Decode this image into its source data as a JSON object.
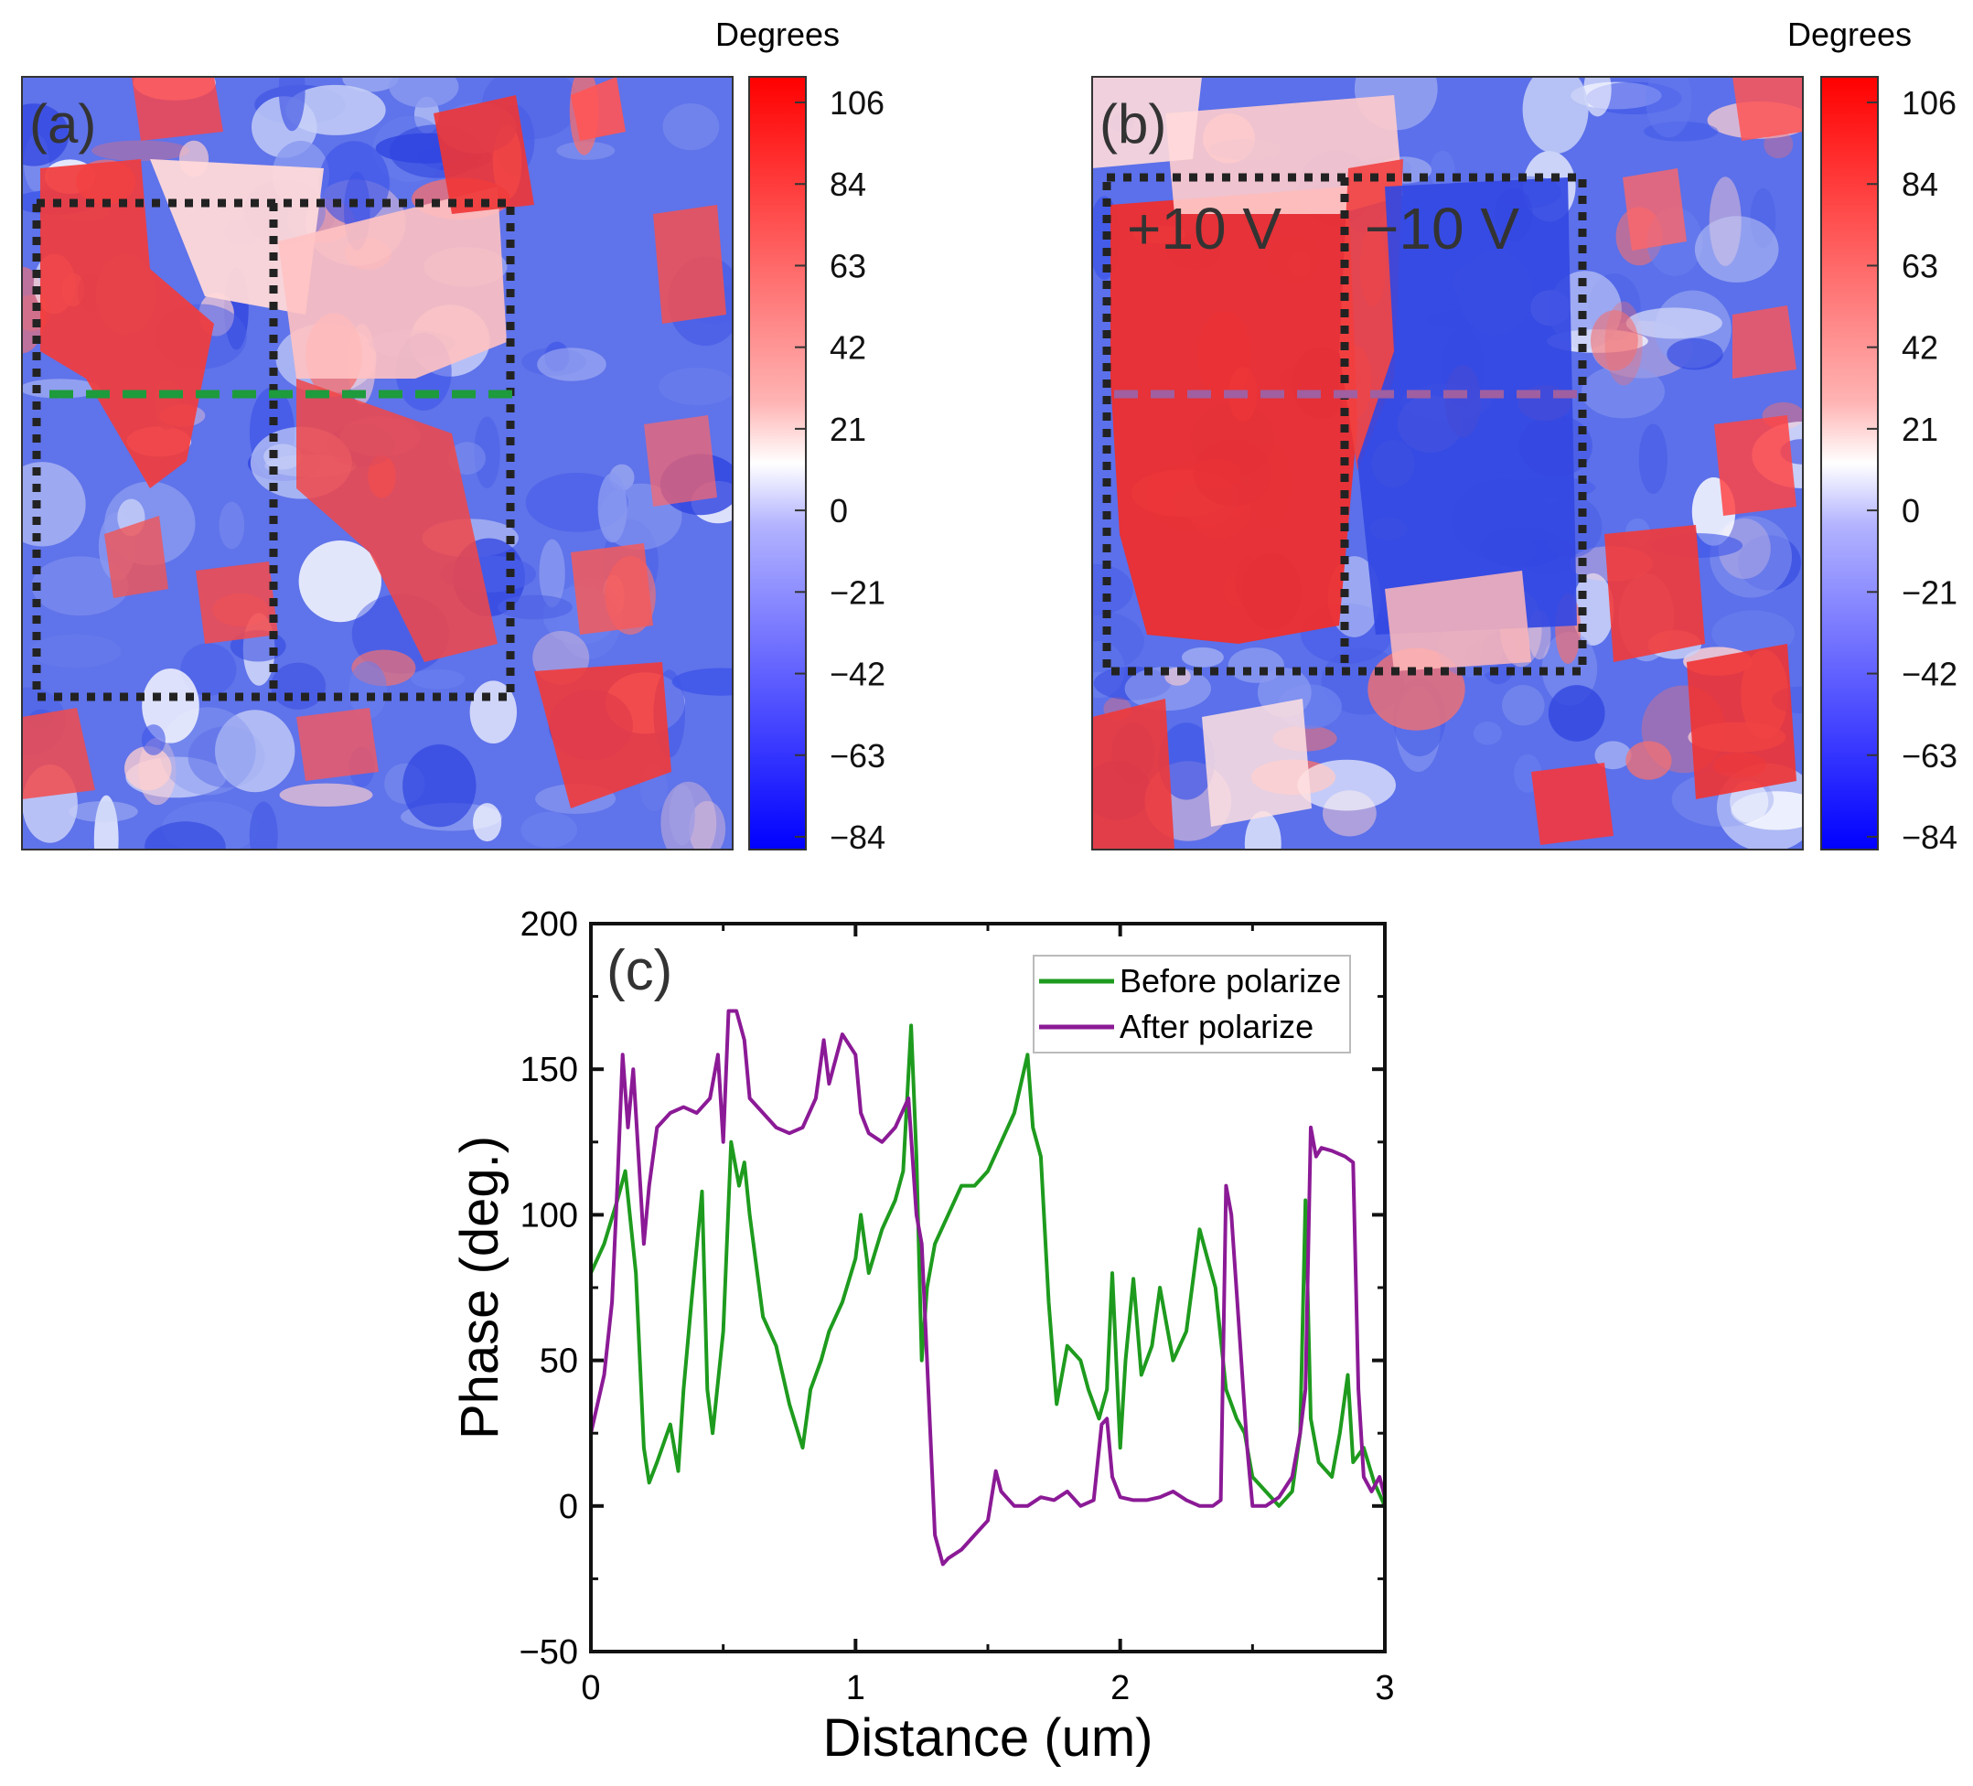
{
  "panels": {
    "a": {
      "label": "(a)",
      "colorbar": {
        "title": "Degrees",
        "ticks": [
          "106",
          "84",
          "63",
          "42",
          "21",
          "0",
          "−21",
          "−42",
          "−63",
          "−84"
        ],
        "colors": {
          "max": "#ff0000",
          "mid": "#ffffff",
          "min": "#0000ff"
        }
      },
      "profile_line_color": "#1e9b3c"
    },
    "b": {
      "label": "(b)",
      "colorbar": {
        "title": "Degrees",
        "ticks": [
          "106",
          "84",
          "63",
          "42",
          "21",
          "0",
          "−21",
          "−42",
          "−63",
          "−84"
        ],
        "colors": {
          "max": "#ff0000",
          "mid": "#ffffff",
          "min": "#0000ff"
        }
      },
      "region_labels": [
        "+10 V",
        "−10 V"
      ],
      "profile_line_color": "#a05fa0"
    }
  },
  "chart_data": {
    "type": "line",
    "panel_label": "(c)",
    "xlabel": "Distance (um)",
    "ylabel": "Phase (deg.)",
    "xlim": [
      0,
      3
    ],
    "ylim": [
      -50,
      200
    ],
    "xticks": [
      0,
      1,
      2,
      3
    ],
    "yticks": [
      -50,
      0,
      50,
      100,
      150,
      200
    ],
    "legend_position": "top-right",
    "series": [
      {
        "name": "Before polarize",
        "color": "#1e9b1e",
        "x": [
          0,
          0.05,
          0.1,
          0.13,
          0.17,
          0.2,
          0.22,
          0.25,
          0.3,
          0.33,
          0.35,
          0.38,
          0.42,
          0.44,
          0.46,
          0.5,
          0.53,
          0.56,
          0.58,
          0.6,
          0.65,
          0.7,
          0.75,
          0.8,
          0.83,
          0.87,
          0.9,
          0.95,
          1.0,
          1.02,
          1.05,
          1.1,
          1.15,
          1.18,
          1.21,
          1.23,
          1.25,
          1.27,
          1.3,
          1.35,
          1.4,
          1.45,
          1.5,
          1.55,
          1.6,
          1.65,
          1.67,
          1.7,
          1.73,
          1.76,
          1.8,
          1.85,
          1.88,
          1.92,
          1.95,
          1.97,
          2.0,
          2.02,
          2.05,
          2.08,
          2.12,
          2.15,
          2.2,
          2.25,
          2.3,
          2.33,
          2.36,
          2.4,
          2.44,
          2.47,
          2.5,
          2.55,
          2.6,
          2.65,
          2.68,
          2.7,
          2.72,
          2.75,
          2.8,
          2.83,
          2.86,
          2.88,
          2.92,
          2.96,
          3.0
        ],
        "y": [
          80,
          90,
          105,
          115,
          80,
          20,
          8,
          15,
          28,
          12,
          40,
          70,
          108,
          40,
          25,
          60,
          125,
          110,
          118,
          100,
          65,
          55,
          35,
          20,
          40,
          50,
          60,
          70,
          85,
          100,
          80,
          95,
          105,
          115,
          165,
          120,
          50,
          75,
          90,
          100,
          110,
          110,
          115,
          125,
          135,
          155,
          130,
          120,
          70,
          35,
          55,
          50,
          40,
          30,
          40,
          80,
          20,
          50,
          78,
          45,
          55,
          75,
          50,
          60,
          95,
          85,
          75,
          40,
          30,
          25,
          10,
          5,
          0,
          5,
          25,
          105,
          30,
          15,
          10,
          25,
          45,
          15,
          20,
          8,
          0
        ],
        "max": 165,
        "min": 0
      },
      {
        "name": "After polarize",
        "color": "#8b1a96",
        "x": [
          0,
          0.05,
          0.08,
          0.1,
          0.12,
          0.14,
          0.16,
          0.18,
          0.2,
          0.22,
          0.25,
          0.3,
          0.35,
          0.4,
          0.45,
          0.48,
          0.5,
          0.52,
          0.55,
          0.58,
          0.6,
          0.65,
          0.7,
          0.75,
          0.8,
          0.85,
          0.88,
          0.9,
          0.95,
          1.0,
          1.02,
          1.05,
          1.1,
          1.15,
          1.2,
          1.23,
          1.25,
          1.27,
          1.3,
          1.33,
          1.35,
          1.4,
          1.45,
          1.5,
          1.53,
          1.55,
          1.6,
          1.65,
          1.7,
          1.75,
          1.8,
          1.85,
          1.9,
          1.93,
          1.95,
          1.97,
          2.0,
          2.05,
          2.1,
          2.15,
          2.2,
          2.25,
          2.3,
          2.35,
          2.38,
          2.4,
          2.42,
          2.45,
          2.48,
          2.5,
          2.55,
          2.6,
          2.65,
          2.68,
          2.7,
          2.72,
          2.74,
          2.76,
          2.8,
          2.85,
          2.88,
          2.9,
          2.92,
          2.95,
          2.98,
          3.0
        ],
        "y": [
          25,
          45,
          70,
          110,
          155,
          130,
          150,
          120,
          90,
          110,
          130,
          135,
          137,
          135,
          140,
          155,
          125,
          170,
          170,
          160,
          140,
          135,
          130,
          128,
          130,
          140,
          160,
          145,
          162,
          155,
          135,
          128,
          125,
          130,
          140,
          100,
          90,
          50,
          -10,
          -20,
          -18,
          -15,
          -10,
          -5,
          12,
          5,
          0,
          0,
          3,
          2,
          5,
          0,
          2,
          28,
          30,
          10,
          3,
          2,
          2,
          3,
          5,
          2,
          0,
          0,
          2,
          110,
          100,
          60,
          20,
          0,
          0,
          3,
          10,
          25,
          40,
          130,
          120,
          123,
          122,
          120,
          118,
          40,
          10,
          5,
          10,
          3
        ],
        "max": 170,
        "min": -20
      }
    ]
  }
}
